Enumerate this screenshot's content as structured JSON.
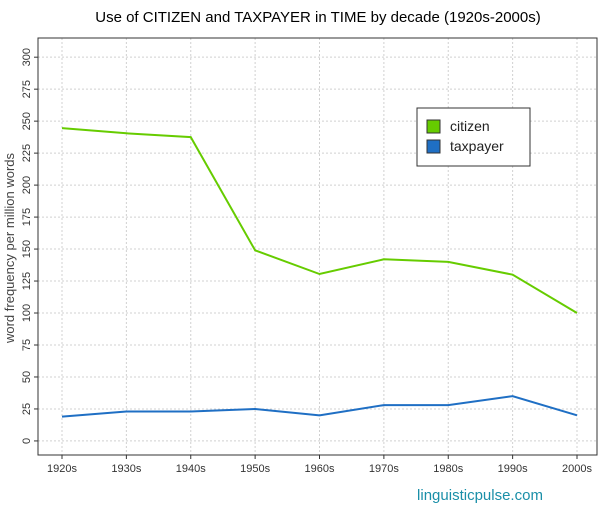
{
  "chart_data": {
    "type": "line",
    "title": "Use of CITIZEN and TAXPAYER in TIME by decade (1920s-2000s)",
    "y_label": "word frequency per million words",
    "watermark": "linguisticpulse.com",
    "categories": [
      "1920s",
      "1930s",
      "1940s",
      "1950s",
      "1960s",
      "1970s",
      "1980s",
      "1990s",
      "2000s"
    ],
    "series": [
      {
        "name": "citizen",
        "color": "#66cc00",
        "values": [
          244.5,
          240.5,
          237.5,
          149,
          130.5,
          142,
          140,
          130,
          100
        ]
      },
      {
        "name": "taxpayer",
        "color": "#1f6fc4",
        "values": [
          19,
          23,
          23,
          25,
          20,
          28,
          28,
          35,
          20
        ]
      }
    ],
    "ylim": [
      -11,
      315
    ],
    "yticks": [
      0,
      25,
      50,
      75,
      100,
      125,
      150,
      175,
      200,
      225,
      250,
      275,
      300
    ],
    "grid": true,
    "legend": "top-right"
  }
}
